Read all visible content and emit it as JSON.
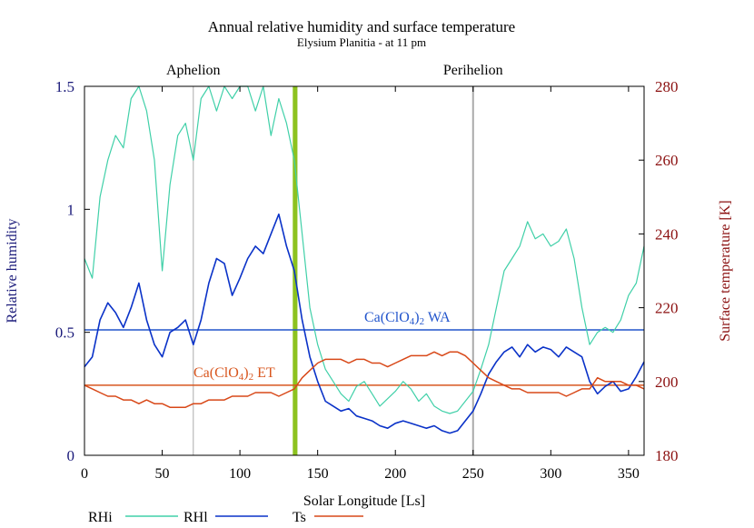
{
  "chart_data": {
    "type": "line",
    "title": "Annual relative humidity and surface temperature",
    "subtitle": "Elysium Planitia - at 11 pm",
    "xlabel": "Solar Longitude [Ls]",
    "ylabel_left": "Relative humidity",
    "ylabel_right": "Surface temperature [K]",
    "xlim": [
      0,
      360
    ],
    "ylim_left": [
      0,
      1.5
    ],
    "ylim_right": [
      180,
      280
    ],
    "x_ticks": [
      "0",
      "50",
      "100",
      "150",
      "200",
      "250",
      "300",
      "350"
    ],
    "y_left_ticks": [
      "0",
      "0.5",
      "1",
      "1.5"
    ],
    "y_right_ticks": [
      "180",
      "200",
      "220",
      "240",
      "260",
      "280"
    ],
    "grid": false,
    "legend": {
      "placement": "bottom-left",
      "items": [
        {
          "label": "RHi",
          "color": "#40d0a8"
        },
        {
          "label": "RHl",
          "color": "#0a32c8"
        },
        {
          "label": "Ts",
          "color": "#d84818"
        }
      ]
    },
    "colors": {
      "rhi": "#40d0a8",
      "rhl": "#0a32c8",
      "ts": "#d84818",
      "left_axis_text": "#1a1a7a",
      "right_axis_text": "#8b1010",
      "wa_line": "#2255cc",
      "et_line": "#d8561e",
      "band": "#8dc21f",
      "season_line": "#aaaaaa"
    },
    "markers": [
      {
        "label": "Aphelion",
        "x": 70
      },
      {
        "label": "Perihelion",
        "x": 250
      }
    ],
    "band": {
      "x_start": 134,
      "x_end": 137
    },
    "reference_lines": [
      {
        "label_main": "Ca(ClO",
        "label_sub1": "4",
        "label_mid": ")",
        "label_sub2": "2",
        "label_tail": " WA",
        "y": 0.51,
        "axis": "left"
      },
      {
        "label_main": "Ca(ClO",
        "label_sub1": "4",
        "label_mid": ")",
        "label_sub2": "2",
        "label_tail": " ET",
        "y": 0.285,
        "axis": "left"
      }
    ],
    "series": [
      {
        "name": "RHi",
        "axis": "left",
        "x": [
          0,
          5,
          10,
          15,
          20,
          25,
          30,
          35,
          40,
          45,
          50,
          55,
          60,
          65,
          70,
          75,
          80,
          85,
          90,
          95,
          100,
          105,
          110,
          115,
          120,
          125,
          130,
          135,
          140,
          145,
          150,
          155,
          160,
          165,
          170,
          175,
          180,
          185,
          190,
          195,
          200,
          205,
          210,
          215,
          220,
          225,
          230,
          235,
          240,
          245,
          250,
          255,
          260,
          265,
          270,
          275,
          280,
          285,
          290,
          295,
          300,
          305,
          310,
          315,
          320,
          325,
          330,
          335,
          340,
          345,
          350,
          355,
          360
        ],
        "values": [
          0.8,
          0.72,
          1.05,
          1.2,
          1.3,
          1.25,
          1.45,
          1.5,
          1.4,
          1.2,
          0.75,
          1.1,
          1.3,
          1.35,
          1.2,
          1.45,
          1.5,
          1.4,
          1.5,
          1.45,
          1.5,
          1.5,
          1.4,
          1.5,
          1.3,
          1.45,
          1.35,
          1.2,
          0.9,
          0.6,
          0.45,
          0.35,
          0.3,
          0.25,
          0.22,
          0.28,
          0.3,
          0.25,
          0.2,
          0.23,
          0.26,
          0.3,
          0.27,
          0.22,
          0.25,
          0.2,
          0.18,
          0.17,
          0.18,
          0.22,
          0.26,
          0.35,
          0.45,
          0.6,
          0.75,
          0.8,
          0.85,
          0.95,
          0.88,
          0.9,
          0.85,
          0.87,
          0.92,
          0.8,
          0.6,
          0.45,
          0.5,
          0.52,
          0.5,
          0.55,
          0.65,
          0.7,
          0.85
        ]
      },
      {
        "name": "RHl",
        "axis": "left",
        "x": [
          0,
          5,
          10,
          15,
          20,
          25,
          30,
          35,
          40,
          45,
          50,
          55,
          60,
          65,
          70,
          75,
          80,
          85,
          90,
          95,
          100,
          105,
          110,
          115,
          120,
          125,
          130,
          135,
          140,
          145,
          150,
          155,
          160,
          165,
          170,
          175,
          180,
          185,
          190,
          195,
          200,
          205,
          210,
          215,
          220,
          225,
          230,
          235,
          240,
          245,
          250,
          255,
          260,
          265,
          270,
          275,
          280,
          285,
          290,
          295,
          300,
          305,
          310,
          315,
          320,
          325,
          330,
          335,
          340,
          345,
          350,
          355,
          360
        ],
        "values": [
          0.36,
          0.4,
          0.55,
          0.62,
          0.58,
          0.52,
          0.6,
          0.7,
          0.55,
          0.45,
          0.4,
          0.5,
          0.52,
          0.55,
          0.45,
          0.55,
          0.7,
          0.8,
          0.78,
          0.65,
          0.72,
          0.8,
          0.85,
          0.82,
          0.9,
          0.98,
          0.85,
          0.75,
          0.55,
          0.4,
          0.3,
          0.22,
          0.2,
          0.18,
          0.19,
          0.16,
          0.15,
          0.14,
          0.12,
          0.11,
          0.13,
          0.14,
          0.13,
          0.12,
          0.11,
          0.12,
          0.1,
          0.09,
          0.1,
          0.14,
          0.18,
          0.25,
          0.33,
          0.38,
          0.42,
          0.44,
          0.4,
          0.45,
          0.42,
          0.44,
          0.43,
          0.4,
          0.44,
          0.42,
          0.4,
          0.3,
          0.25,
          0.28,
          0.3,
          0.26,
          0.27,
          0.32,
          0.38
        ]
      },
      {
        "name": "Ts",
        "axis": "right",
        "x": [
          0,
          5,
          10,
          15,
          20,
          25,
          30,
          35,
          40,
          45,
          50,
          55,
          60,
          65,
          70,
          75,
          80,
          85,
          90,
          95,
          100,
          105,
          110,
          115,
          120,
          125,
          130,
          135,
          140,
          145,
          150,
          155,
          160,
          165,
          170,
          175,
          180,
          185,
          190,
          195,
          200,
          205,
          210,
          215,
          220,
          225,
          230,
          235,
          240,
          245,
          250,
          255,
          260,
          265,
          270,
          275,
          280,
          285,
          290,
          295,
          300,
          305,
          310,
          315,
          320,
          325,
          330,
          335,
          340,
          345,
          350,
          355,
          360
        ],
        "values": [
          199,
          198,
          197,
          196,
          196,
          195,
          195,
          194,
          195,
          194,
          194,
          193,
          193,
          193,
          194,
          194,
          195,
          195,
          195,
          196,
          196,
          196,
          197,
          197,
          197,
          196,
          197,
          198,
          201,
          203,
          205,
          206,
          206,
          206,
          205,
          206,
          206,
          205,
          205,
          204,
          205,
          206,
          207,
          207,
          207,
          208,
          207,
          208,
          208,
          207,
          205,
          203,
          201,
          200,
          199,
          198,
          198,
          197,
          197,
          197,
          197,
          197,
          196,
          197,
          198,
          198,
          201,
          200,
          200,
          200,
          199,
          199,
          198
        ]
      }
    ]
  }
}
